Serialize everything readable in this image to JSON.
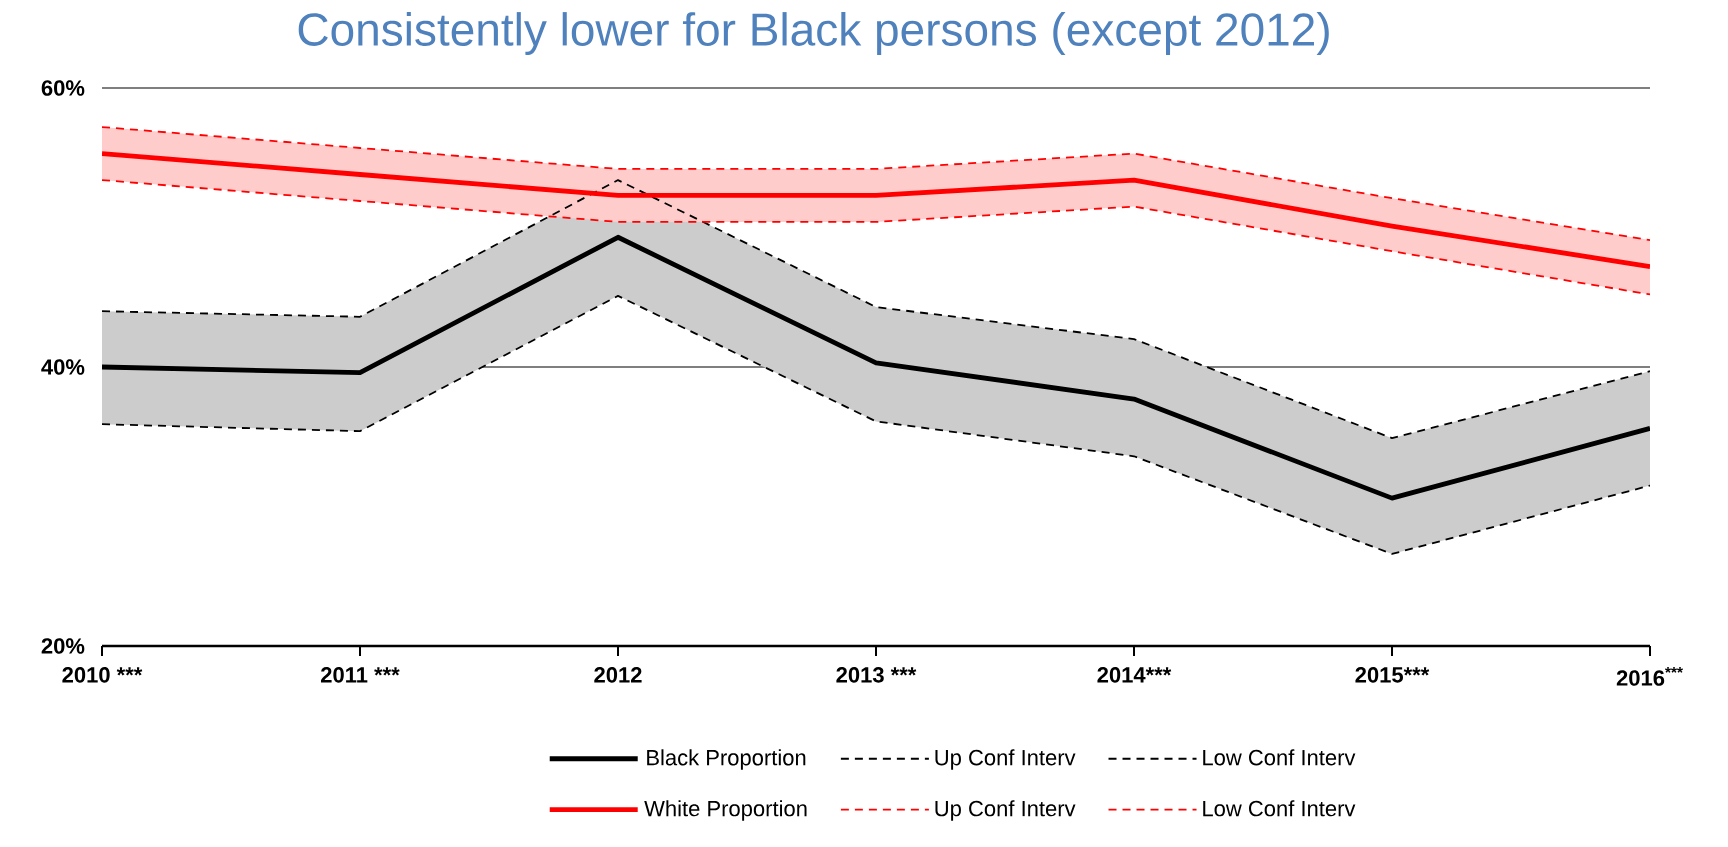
{
  "chart_data": {
    "type": "line",
    "title": "Consistently lower for Black persons (except 2012)",
    "categories": [
      "2010 ***",
      "2011 ***",
      "2012",
      "2013 ***",
      "2014***",
      "2015***",
      "2016$^{***}$"
    ],
    "ylim": [
      20,
      60
    ],
    "yticks": [
      {
        "value": 20,
        "label": "20%"
      },
      {
        "value": 40,
        "label": "40%"
      },
      {
        "value": 60,
        "label": "60%"
      }
    ],
    "grid": "y",
    "legend": "bottom",
    "series": [
      {
        "name": "Black Proportion",
        "color": "#000000",
        "line_style": "solid",
        "values": [
          40.0,
          39.6,
          49.3,
          40.3,
          37.7,
          30.6,
          35.6
        ],
        "lower": [
          35.9,
          35.4,
          45.1,
          36.1,
          33.6,
          26.6,
          31.5
        ],
        "upper": [
          44.0,
          43.6,
          53.4,
          44.3,
          42.0,
          34.9,
          39.7
        ]
      },
      {
        "name": "Up Conf Interv",
        "color": "#000000",
        "line_style": "dashed",
        "values": [
          44.0,
          43.6,
          53.4,
          44.3,
          42.0,
          34.9,
          39.7
        ]
      },
      {
        "name": "Low Conf Interv",
        "color": "#000000",
        "line_style": "dashed",
        "values": [
          35.9,
          35.4,
          45.1,
          36.1,
          33.6,
          26.6,
          31.5
        ]
      },
      {
        "name": "White Proportion",
        "color": "#ff0000",
        "line_style": "solid",
        "values": [
          55.3,
          53.8,
          52.3,
          52.3,
          53.4,
          50.1,
          47.2
        ],
        "lower": [
          53.4,
          51.9,
          50.4,
          50.4,
          51.5,
          48.3,
          45.2
        ],
        "upper": [
          57.2,
          55.7,
          54.2,
          54.2,
          55.3,
          52.1,
          49.1
        ]
      },
      {
        "name": "Up Conf Interv",
        "color": "#ff0000",
        "line_style": "dashed",
        "values": [
          57.2,
          55.7,
          54.2,
          54.2,
          55.3,
          52.1,
          49.1
        ]
      },
      {
        "name": "Low Conf Interv",
        "color": "#ff0000",
        "line_style": "dashed",
        "values": [
          53.4,
          51.9,
          50.4,
          50.4,
          51.5,
          48.3,
          45.2
        ]
      }
    ]
  }
}
